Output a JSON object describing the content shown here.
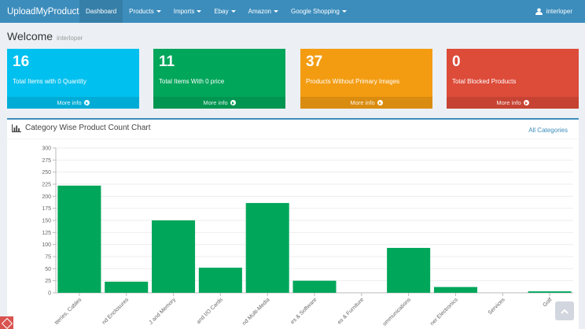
{
  "navbar": {
    "brand": "UploadMyProducts",
    "items": [
      {
        "label": "Dashboard",
        "dropdown": false,
        "active": true
      },
      {
        "label": "Products",
        "dropdown": true
      },
      {
        "label": "Imports",
        "dropdown": true
      },
      {
        "label": "Ebay",
        "dropdown": true
      },
      {
        "label": "Amazon",
        "dropdown": true
      },
      {
        "label": "Google Shopping",
        "dropdown": true
      }
    ],
    "user": "interloper",
    "user_icon": "user-icon",
    "color": "#3c8dbc"
  },
  "header": {
    "title": "Welcome",
    "subtitle": "interloper"
  },
  "info_boxes": [
    {
      "value": "16",
      "label": "Total Items with 0 Quantity",
      "link": "More info",
      "color": "#00c0ef",
      "icon": "arrow-circle-right-icon"
    },
    {
      "value": "11",
      "label": "Total Items With 0 price",
      "link": "More info",
      "color": "#00a65a",
      "icon": "arrow-circle-right-icon"
    },
    {
      "value": "37",
      "label": "Products Without Primary Images",
      "link": "More info",
      "color": "#f39c12",
      "icon": "arrow-circle-right-icon"
    },
    {
      "value": "0",
      "label": "Total Blocked Products",
      "link": "More info",
      "color": "#dd4b39",
      "icon": "arrow-circle-right-icon"
    }
  ],
  "chart_panel": {
    "title": "Category Wise Product Count Chart",
    "title_icon": "bar-chart-icon",
    "filter_link": "All Categories"
  },
  "chart_data": {
    "type": "bar",
    "title": "",
    "xlabel": "",
    "ylabel": "",
    "ylim": [
      0,
      300
    ],
    "yticks": [
      0,
      25,
      50,
      75,
      100,
      125,
      150,
      175,
      200,
      225,
      250,
      275,
      300
    ],
    "grid": true,
    "bar_color": "#00a65a",
    "categories": [
      "tteries, Cables",
      "nd Enclosures",
      "J and Memory",
      "and I/O Cards",
      "nd Multi-Media",
      "es & Software",
      "es & Furniture",
      "ommunications",
      "ner Electronics",
      "Services",
      "Golf"
    ],
    "values": [
      222,
      23,
      150,
      52,
      186,
      25,
      0,
      93,
      12,
      0,
      3
    ]
  }
}
